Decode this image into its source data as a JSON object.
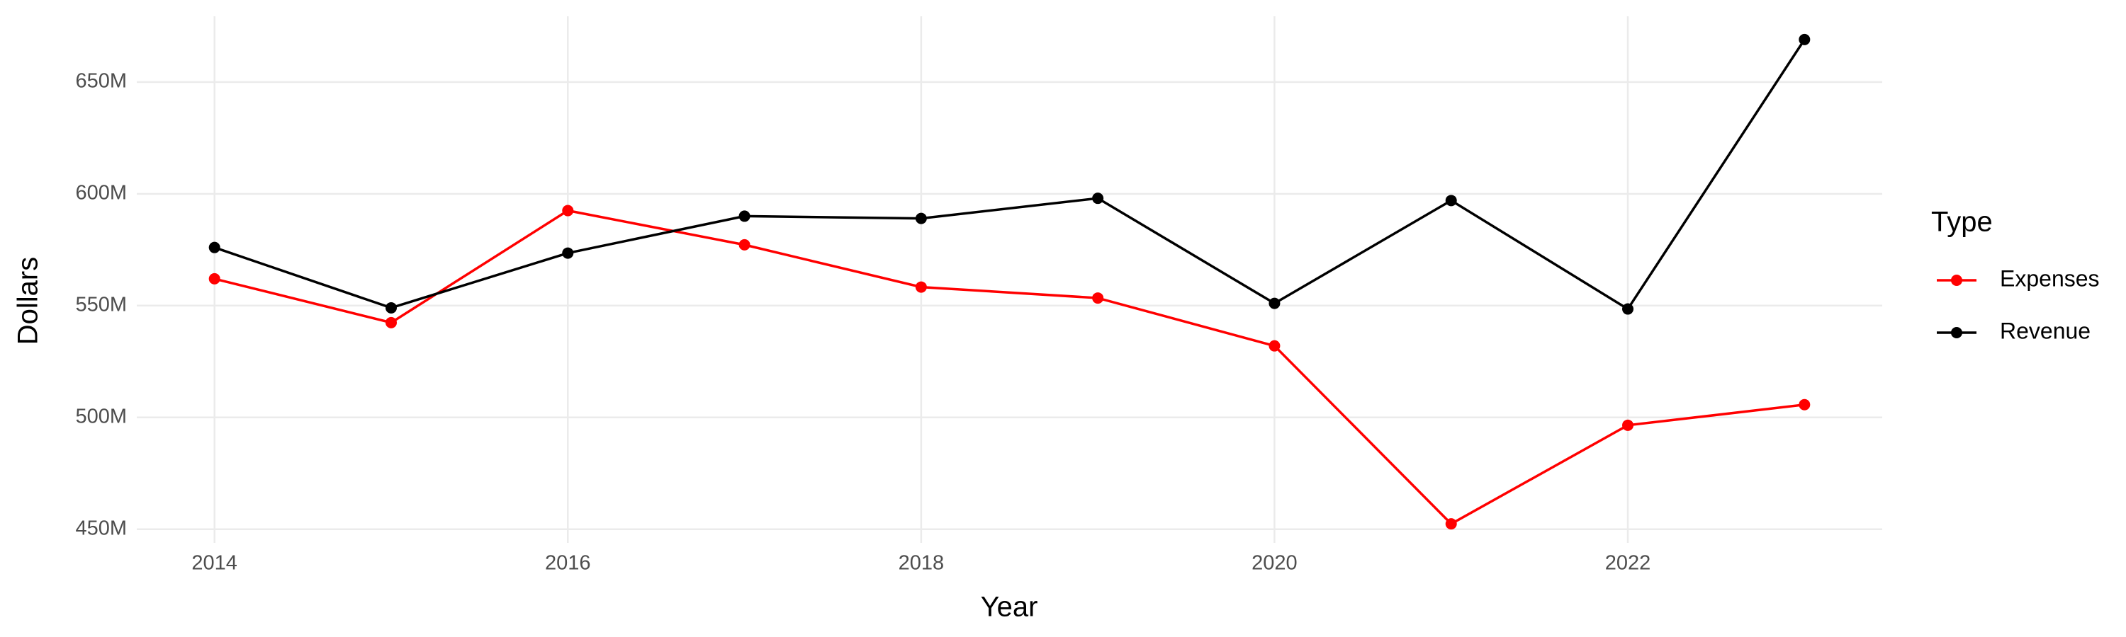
{
  "chart_data": {
    "type": "line",
    "x_label": "Year",
    "y_label": "Dollars",
    "legend_title": "Type",
    "legend_position": "right",
    "x": [
      2014,
      2015,
      2016,
      2017,
      2018,
      2019,
      2020,
      2021,
      2022,
      2023
    ],
    "series": [
      {
        "name": "Expenses",
        "color": "#ff0000",
        "values": [
          562000000,
          542400000,
          592500000,
          577200000,
          558300000,
          553400000,
          532000000,
          452400000,
          496500000,
          505700000
        ]
      },
      {
        "name": "Revenue",
        "color": "#000000",
        "values": [
          576000000,
          549000000,
          573500000,
          590000000,
          589000000,
          598000000,
          551000000,
          597000000,
          548500000,
          669000000
        ]
      }
    ],
    "xlim": [
      2013.56,
      2023.44
    ],
    "xticks": [
      2014,
      2016,
      2018,
      2020,
      2022
    ],
    "ylim": [
      443900000,
      679400000
    ],
    "yticks": [
      {
        "value": 450000000,
        "label": "450M"
      },
      {
        "value": 500000000,
        "label": "500M"
      },
      {
        "value": 550000000,
        "label": "550M"
      },
      {
        "value": 600000000,
        "label": "600M"
      },
      {
        "value": 650000000,
        "label": "650M"
      }
    ],
    "grid": true
  }
}
